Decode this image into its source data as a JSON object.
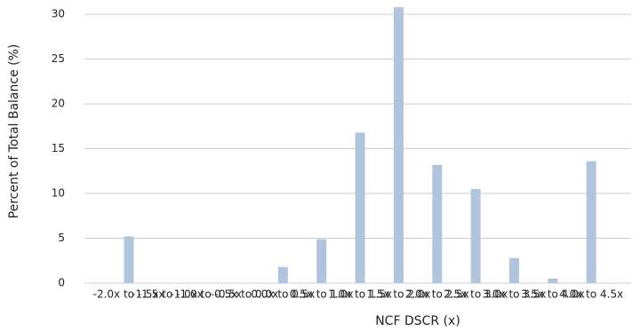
{
  "chart_data": {
    "type": "bar",
    "x_label": "NCF DSCR (x)",
    "y_label": "Percent of Total Balance (%)",
    "categories": [
      "-2.0x to -1.5x",
      "-1.5x to -1.0x",
      "-1.0x to -0.5x",
      "-0.5x to 0.0x",
      "0.0x to 0.5x",
      "0.5x to 1.0x",
      "1.0x to 1.5x",
      "1.5x to 2.0x",
      "2.0x to 2.5x",
      "2.5x to 3.0x",
      "3.0x to 3.5x",
      "3.5x to 4.0x",
      "4.0x to 4.5x"
    ],
    "values": [
      5.2,
      0,
      0,
      0,
      1.8,
      4.9,
      16.8,
      30.8,
      13.2,
      10.5,
      2.8,
      0.5,
      13.6
    ],
    "color": "#b0c4de",
    "ylim": [
      0,
      31
    ],
    "yticks": [
      0,
      5,
      10,
      15,
      20,
      25,
      30
    ],
    "grid": true
  }
}
